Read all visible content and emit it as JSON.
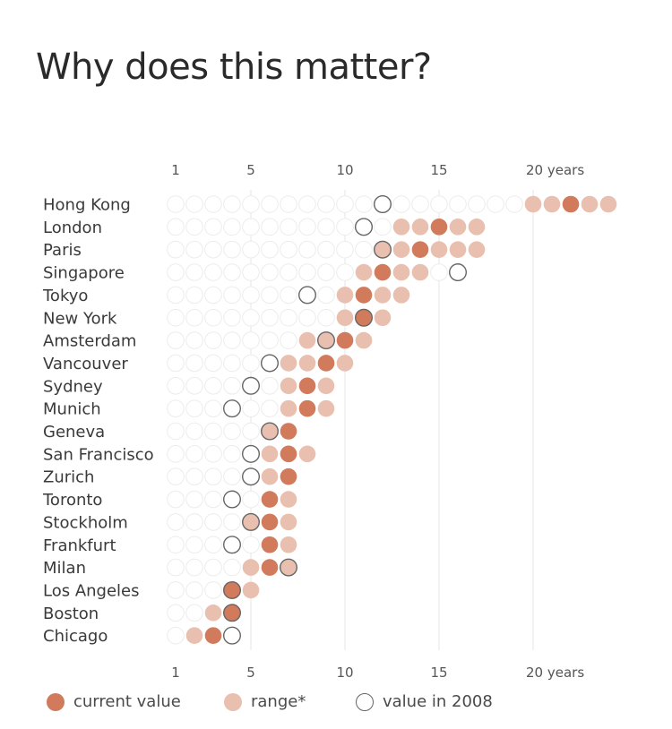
{
  "title": "Why does this matter?",
  "colors": {
    "current": "#d17a5c",
    "range": "#e9c0b0",
    "grid": "#e6e6e6",
    "empty": "#ececec",
    "ring": "#666666",
    "label": "#3a3a3a"
  },
  "legend": {
    "current": "current value",
    "range": "range*",
    "y2008": "value in 2008"
  },
  "chart_data": {
    "type": "dot-plot",
    "title": "Why does this matter?",
    "x_unit": "years",
    "xlim": [
      1,
      24
    ],
    "x_ticks": [
      {
        "value": 1,
        "label": "1"
      },
      {
        "value": 5,
        "label": "5"
      },
      {
        "value": 10,
        "label": "10"
      },
      {
        "value": 15,
        "label": "15"
      },
      {
        "value": 20,
        "label": "20 years"
      }
    ],
    "series": [
      "current value",
      "range*",
      "value in 2008"
    ],
    "cities": [
      {
        "name": "Hong Kong",
        "range": [
          20,
          24
        ],
        "current": 22,
        "y2008": 12
      },
      {
        "name": "London",
        "range": [
          13,
          17
        ],
        "current": 15,
        "y2008": 11
      },
      {
        "name": "Paris",
        "range": [
          12,
          17
        ],
        "current": 14,
        "y2008": 12
      },
      {
        "name": "Singapore",
        "range": [
          11,
          14
        ],
        "current": 12,
        "y2008": 16
      },
      {
        "name": "Tokyo",
        "range": [
          10,
          13
        ],
        "current": 11,
        "y2008": 8
      },
      {
        "name": "New York",
        "range": [
          10,
          12
        ],
        "current": 11,
        "y2008": 11
      },
      {
        "name": "Amsterdam",
        "range": [
          8,
          11
        ],
        "current": 10,
        "y2008": 9
      },
      {
        "name": "Vancouver",
        "range": [
          7,
          10
        ],
        "current": 9,
        "y2008": 6
      },
      {
        "name": "Sydney",
        "range": [
          7,
          9
        ],
        "current": 8,
        "y2008": 5
      },
      {
        "name": "Munich",
        "range": [
          7,
          9
        ],
        "current": 8,
        "y2008": 4
      },
      {
        "name": "Geneva",
        "range": [
          6,
          7
        ],
        "current": 7,
        "y2008": 6
      },
      {
        "name": "San Francisco",
        "range": [
          6,
          8
        ],
        "current": 7,
        "y2008": 5
      },
      {
        "name": "Zurich",
        "range": [
          6,
          7
        ],
        "current": 7,
        "y2008": 5
      },
      {
        "name": "Toronto",
        "range": [
          6,
          7
        ],
        "current": 6,
        "y2008": 4
      },
      {
        "name": "Stockholm",
        "range": [
          5,
          7
        ],
        "current": 6,
        "y2008": 5
      },
      {
        "name": "Frankfurt",
        "range": [
          6,
          7
        ],
        "current": 6,
        "y2008": 4
      },
      {
        "name": "Milan",
        "range": [
          5,
          7
        ],
        "current": 6,
        "y2008": 7
      },
      {
        "name": "Los Angeles",
        "range": [
          4,
          5
        ],
        "current": 4,
        "y2008": 4
      },
      {
        "name": "Boston",
        "range": [
          3,
          4
        ],
        "current": 4,
        "y2008": 4
      },
      {
        "name": "Chicago",
        "range": [
          2,
          3
        ],
        "current": 3,
        "y2008": 4
      }
    ]
  }
}
